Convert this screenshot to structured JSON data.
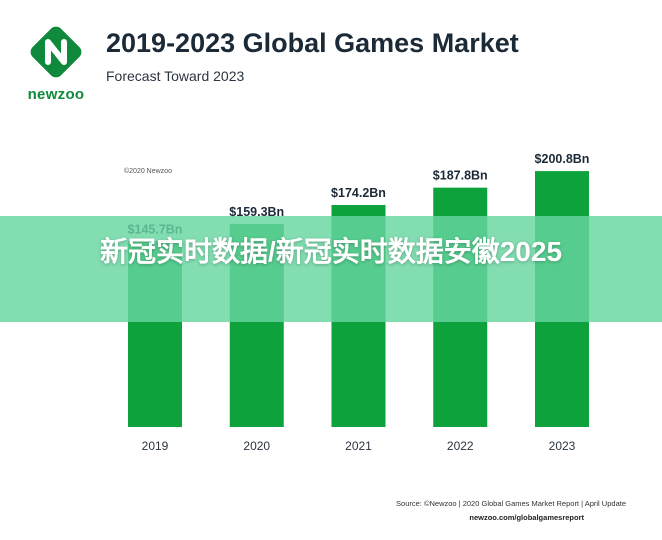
{
  "logo": {
    "name": "newzoo",
    "color": "#0f8a3c"
  },
  "header": {
    "title": "2019-2023 Global Games Market",
    "subtitle": "Forecast Toward 2023"
  },
  "copyright": "©2020 Newzoo",
  "chart_data": {
    "type": "bar",
    "title": "2019-2023 Global Games Market",
    "subtitle": "Forecast Toward 2023",
    "categories": [
      "2019",
      "2020",
      "2021",
      "2022",
      "2023"
    ],
    "values": [
      145.7,
      159.3,
      174.2,
      187.8,
      200.8
    ],
    "data_labels": [
      "$145.7Bn",
      "$159.3Bn",
      "$174.2Bn",
      "$187.8Bn",
      "$200.8Bn"
    ],
    "ylim": [
      0,
      210
    ],
    "grid": false,
    "bar_color": "#0ea23d",
    "xlabel": "",
    "ylabel": ""
  },
  "overlay": {
    "text": "新冠实时数据/新冠实时数据安徽2025"
  },
  "footer": {
    "source": "Source: ©Newzoo | 2020 Global Games Market Report | April Update",
    "url": "newzoo.com/globalgamesreport"
  }
}
